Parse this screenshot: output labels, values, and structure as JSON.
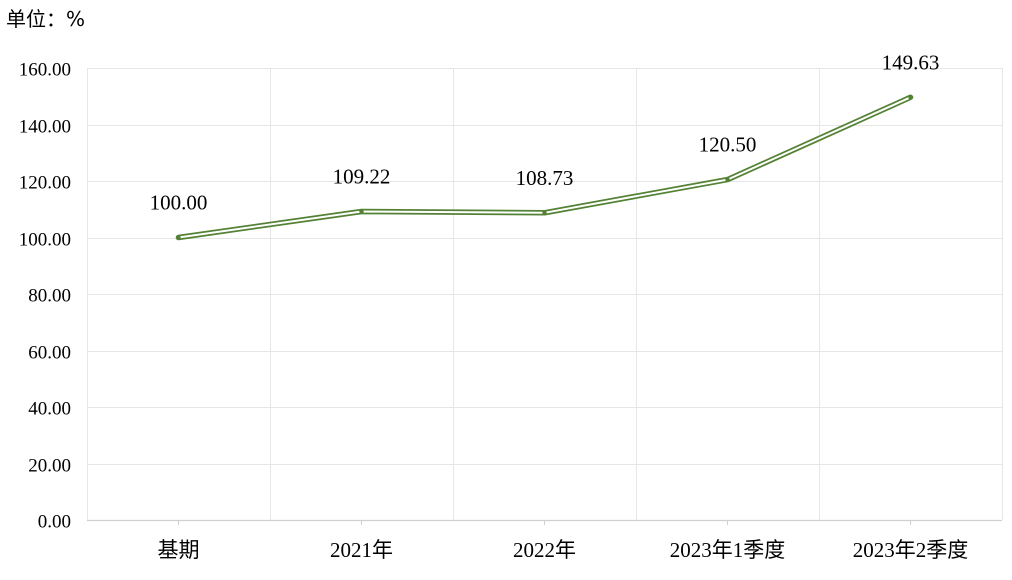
{
  "chart_data": {
    "type": "line",
    "unit_label": "单位：%",
    "categories": [
      "基期",
      "2021年",
      "2022年",
      "2023年1季度",
      "2023年2季度"
    ],
    "series": [
      {
        "values": [
          100.0,
          109.22,
          108.73,
          120.5,
          149.63
        ],
        "data_labels": [
          "100.00",
          "109.22",
          "108.73",
          "120.50",
          "149.63"
        ]
      }
    ],
    "ylim": [
      0,
      160
    ],
    "y_ticks": [
      0,
      20,
      40,
      60,
      80,
      100,
      120,
      140,
      160
    ],
    "y_tick_labels": [
      "0.00",
      "20.00",
      "40.00",
      "60.00",
      "80.00",
      "100.00",
      "120.00",
      "140.00",
      "160.00"
    ],
    "grid": true,
    "legend": "none",
    "line_color": "#548235",
    "grid_color": "#e6e6e6"
  }
}
